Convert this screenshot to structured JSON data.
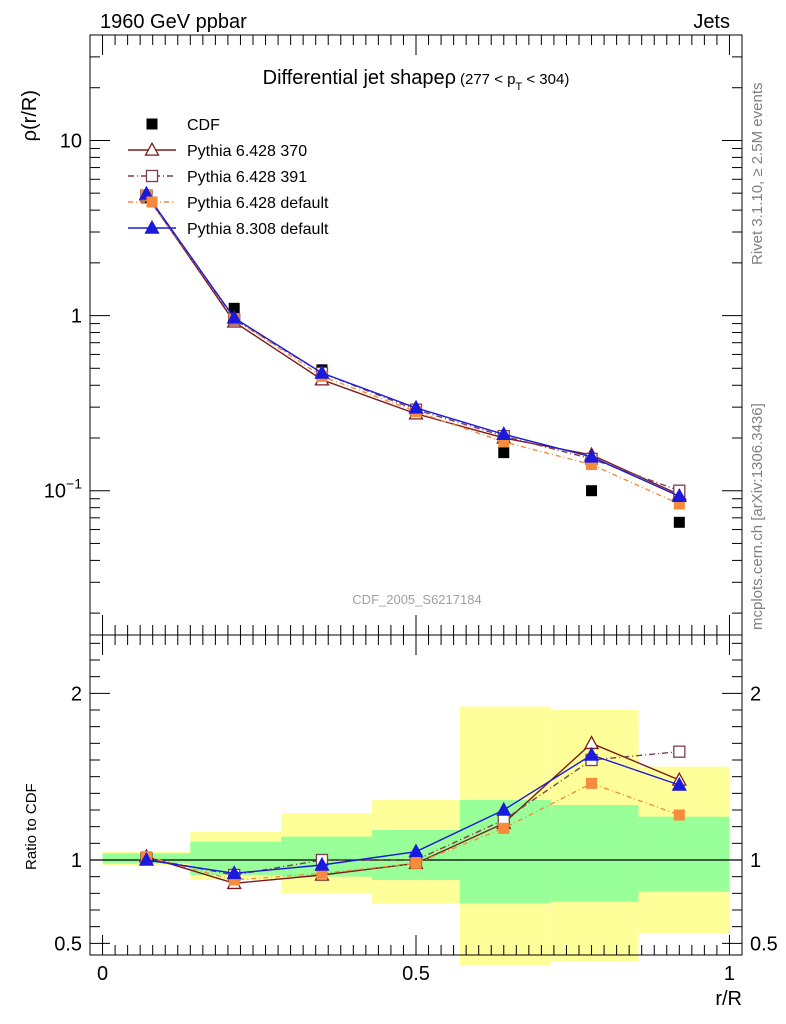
{
  "header": {
    "left": "1960 GeV ppbar",
    "right": "Jets",
    "side_top": "Rivet 3.1.10, ≥ 2.5M events",
    "side_bottom": "mcplots.cern.ch [arXiv:1306.3436]",
    "watermark": "CDF_2005_S6217184"
  },
  "chart_data": [
    {
      "type": "line",
      "title": "Differential jet shapeρ",
      "subtitle": "(277 < p",
      "subtitle_sub": "T",
      "subtitle_end": " < 304)",
      "ylabel": "ρ(r/R)",
      "xlabel": "",
      "yscale": "log",
      "ylim": [
        0.015,
        40
      ],
      "xlim": [
        -0.02,
        1.02
      ],
      "yticks": [
        {
          "value": 10,
          "label": "10"
        },
        {
          "value": 1,
          "label": "1"
        },
        {
          "value": 0.1,
          "label": "10",
          "exp": "−1"
        }
      ],
      "legend_position": "top-left",
      "x": [
        0.07,
        0.21,
        0.35,
        0.5,
        0.64,
        0.78,
        0.92
      ],
      "data": {
        "name": "CDF",
        "values": [
          4.7,
          1.1,
          0.49,
          0.29,
          0.165,
          0.1,
          0.066
        ],
        "color": "#000000"
      },
      "series": [
        {
          "name": "Pythia 6.428 370",
          "values": [
            4.9,
            0.92,
            0.43,
            0.275,
            0.2,
            0.16,
            0.095
          ],
          "color": "#7b1a1a",
          "marker": "triangle-open",
          "dash": ""
        },
        {
          "name": "Pythia 6.428 391",
          "values": [
            4.85,
            0.95,
            0.47,
            0.29,
            0.205,
            0.152,
            0.1
          ],
          "color": "#7b3f4f",
          "marker": "square-open",
          "dash": "6,3,1,3"
        },
        {
          "name": "Pythia 6.428 default",
          "values": [
            4.9,
            0.96,
            0.45,
            0.283,
            0.19,
            0.141,
            0.084
          ],
          "color": "#f58b3c",
          "marker": "square-filled",
          "dash": "5,3,1,3"
        },
        {
          "name": "Pythia 8.308 default",
          "values": [
            4.95,
            0.97,
            0.47,
            0.297,
            0.21,
            0.156,
            0.093
          ],
          "color": "#1a1adc",
          "marker": "triangle-filled",
          "dash": ""
        }
      ]
    },
    {
      "type": "line",
      "ylabel": "Ratio to CDF",
      "xlabel": "r/R",
      "ylim": [
        0.43,
        2.35
      ],
      "xlim": [
        -0.02,
        1.02
      ],
      "xticks": [
        {
          "value": 0,
          "label": "0"
        },
        {
          "value": 0.5,
          "label": "0.5"
        },
        {
          "value": 1,
          "label": "1"
        }
      ],
      "yticks": [
        {
          "value": 2,
          "label": "2"
        },
        {
          "value": 1,
          "label": "1"
        },
        {
          "value": 0.5,
          "label": "0.5"
        }
      ],
      "reference_line": 1,
      "bands": [
        {
          "x0": 0.0,
          "x1": 0.14,
          "yellow": [
            0.97,
            1.05
          ],
          "green": [
            0.98,
            1.04
          ]
        },
        {
          "x0": 0.14,
          "x1": 0.285,
          "yellow": [
            0.88,
            1.17
          ],
          "green": [
            0.91,
            1.11
          ]
        },
        {
          "x0": 0.285,
          "x1": 0.43,
          "yellow": [
            0.8,
            1.28
          ],
          "green": [
            0.9,
            1.14
          ]
        },
        {
          "x0": 0.43,
          "x1": 0.57,
          "yellow": [
            0.74,
            1.36
          ],
          "green": [
            0.88,
            1.18
          ]
        },
        {
          "x0": 0.57,
          "x1": 0.715,
          "yellow": [
            0.37,
            1.92
          ],
          "green": [
            0.74,
            1.36
          ]
        },
        {
          "x0": 0.715,
          "x1": 0.855,
          "yellow": [
            0.39,
            1.9
          ],
          "green": [
            0.75,
            1.33
          ]
        },
        {
          "x0": 0.855,
          "x1": 1.0,
          "yellow": [
            0.56,
            1.56
          ],
          "green": [
            0.81,
            1.26
          ]
        }
      ],
      "x": [
        0.07,
        0.21,
        0.35,
        0.5,
        0.64,
        0.78,
        0.92
      ],
      "series": [
        {
          "name": "Pythia 6.428 370",
          "values": [
            1.02,
            0.86,
            0.91,
            0.98,
            1.22,
            1.7,
            1.48
          ],
          "color": "#7b1a1a",
          "marker": "triangle-open",
          "dash": ""
        },
        {
          "name": "Pythia 6.428 391",
          "values": [
            1.01,
            0.91,
            1.0,
            1.0,
            1.24,
            1.6,
            1.65
          ],
          "color": "#7b3f4f",
          "marker": "square-open",
          "dash": "6,3,1,3"
        },
        {
          "name": "Pythia 6.428 default",
          "values": [
            1.02,
            0.88,
            0.92,
            0.98,
            1.19,
            1.46,
            1.27
          ],
          "color": "#f58b3c",
          "marker": "square-filled",
          "dash": "5,3,1,3"
        },
        {
          "name": "Pythia 8.308 default",
          "values": [
            1.0,
            0.92,
            0.97,
            1.05,
            1.3,
            1.63,
            1.45
          ],
          "color": "#1a1adc",
          "marker": "triangle-filled",
          "dash": ""
        }
      ]
    }
  ]
}
